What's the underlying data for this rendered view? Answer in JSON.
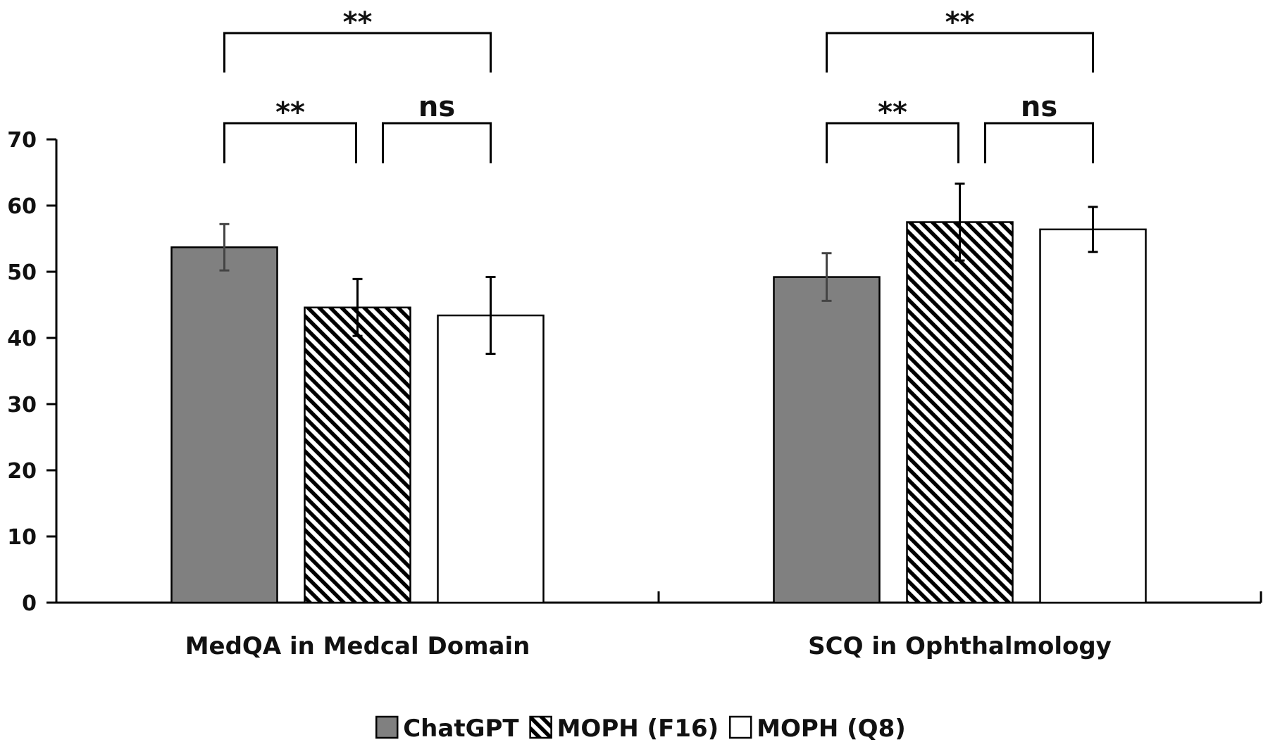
{
  "chart_data": {
    "type": "bar",
    "title": "",
    "xlabel": "",
    "ylabel": "",
    "ylim": [
      0,
      70
    ],
    "yticks": [
      0,
      10,
      20,
      30,
      40,
      50,
      60,
      70
    ],
    "grid": false,
    "legend_position": "bottom",
    "categories": [
      "MedQA in Medcal Domain",
      "SCQ in Ophthalmology"
    ],
    "series": [
      {
        "name": "ChatGPT",
        "values": [
          53.7,
          49.2
        ],
        "errors": [
          3.5,
          3.6
        ],
        "fill": "solid",
        "color": "#808080"
      },
      {
        "name": "MOPH (F16)",
        "values": [
          44.6,
          57.5
        ],
        "errors": [
          4.3,
          5.8
        ],
        "fill": "hatched",
        "color": "#000000"
      },
      {
        "name": "MOPH (Q8)",
        "values": [
          43.4,
          56.4
        ],
        "errors": [
          5.8,
          3.4
        ],
        "fill": "white",
        "color": "#ffffff"
      }
    ],
    "significance": [
      {
        "category": 0,
        "from_series": 0,
        "to_series": 1,
        "label": "**"
      },
      {
        "category": 0,
        "from_series": 1,
        "to_series": 2,
        "label": "ns"
      },
      {
        "category": 0,
        "from_series": 0,
        "to_series": 2,
        "label": "**"
      },
      {
        "category": 1,
        "from_series": 0,
        "to_series": 1,
        "label": "**"
      },
      {
        "category": 1,
        "from_series": 1,
        "to_series": 2,
        "label": "ns"
      },
      {
        "category": 1,
        "from_series": 0,
        "to_series": 2,
        "label": "**"
      }
    ]
  }
}
